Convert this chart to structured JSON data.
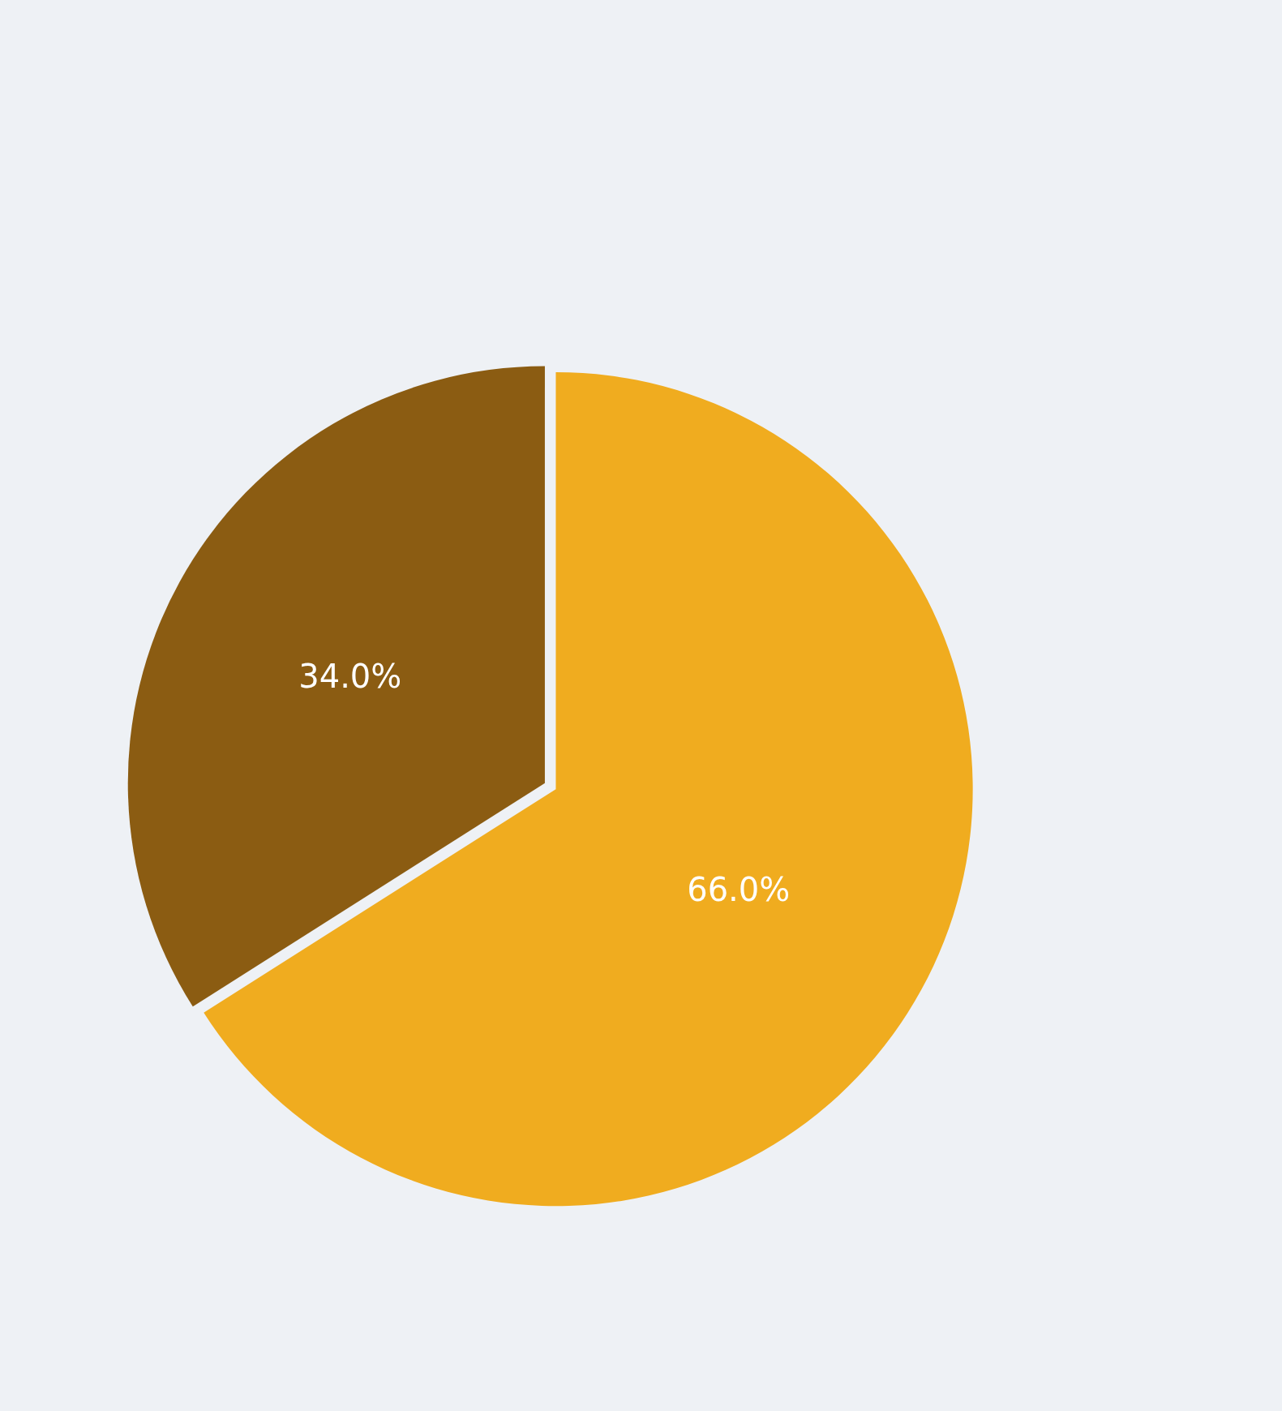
{
  "chart_data": {
    "type": "pie",
    "categories": [
      null,
      null
    ],
    "values": [
      66.0,
      34.0
    ],
    "colors": [
      "#f0ac1f",
      "#8b5c12"
    ],
    "value_labels": [
      "66.0%",
      "34.0%"
    ],
    "legend": false
  }
}
